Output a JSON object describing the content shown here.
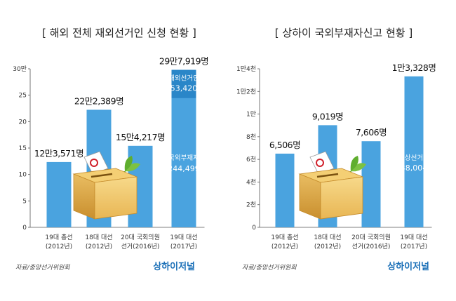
{
  "chart_data": [
    {
      "type": "bar",
      "title": "[ 해외 전체 재외선거인 신청 현황 ]",
      "categories": [
        [
          "19대 총선",
          "(2012년)"
        ],
        [
          "18대 대선",
          "(2012년)"
        ],
        [
          "20대 국회의원",
          "선거(2016년)"
        ],
        [
          "19대 대선",
          "(2017년)"
        ]
      ],
      "values": [
        123571,
        222389,
        154217,
        297919
      ],
      "value_labels": [
        "12만3,571명",
        "22만2,389명",
        "15만4,217명",
        "29만7,919명"
      ],
      "ylim": [
        0,
        300000
      ],
      "ticks": [
        0,
        50000,
        100000,
        150000,
        200000,
        250000,
        300000
      ],
      "tick_labels": [
        "0",
        "5",
        "10",
        "15",
        "20",
        "25",
        "30만"
      ],
      "grid": false,
      "breakdown": {
        "bar_index": 3,
        "top_label": "재외선거인",
        "top_value": 53420,
        "top_text": "53,420",
        "bottom_label": "국외부재자",
        "bottom_value": 244499,
        "bottom_text": "244,499"
      },
      "colors": {
        "bar": "#4aa3df",
        "bar_dark": "#2a86c8"
      }
    },
    {
      "type": "bar",
      "title": "[ 상하이 국외부재자신고 현황 ]",
      "categories": [
        [
          "19대 총선",
          "(2012년)"
        ],
        [
          "18대 대선",
          "(2012년)"
        ],
        [
          "20대 국회의원",
          "선거(2016년)"
        ],
        [
          "19대 대선",
          "(2017년)"
        ]
      ],
      "values": [
        6506,
        9019,
        7606,
        13328
      ],
      "value_labels": [
        "6,506명",
        "9,019명",
        "7,606명",
        "1만3,328명"
      ],
      "ylim": [
        0,
        14000
      ],
      "ticks": [
        0,
        2000,
        4000,
        6000,
        8000,
        10000,
        12000,
        14000
      ],
      "tick_labels": [
        "0",
        "2천",
        "4천",
        "6천",
        "8천",
        "1만",
        "1만2천",
        "1만4천"
      ],
      "grid": false,
      "inner_note": {
        "bar_index": 3,
        "label": "예상선거인",
        "value": 38004,
        "text": "38,004"
      },
      "colors": {
        "bar": "#4aa3df"
      }
    }
  ],
  "footer": {
    "source_left": "자료/중앙선거위원회",
    "source_right": "자료/중앙선거위원회",
    "brand_left": "상하이저널",
    "brand_right": "상하이저널"
  }
}
